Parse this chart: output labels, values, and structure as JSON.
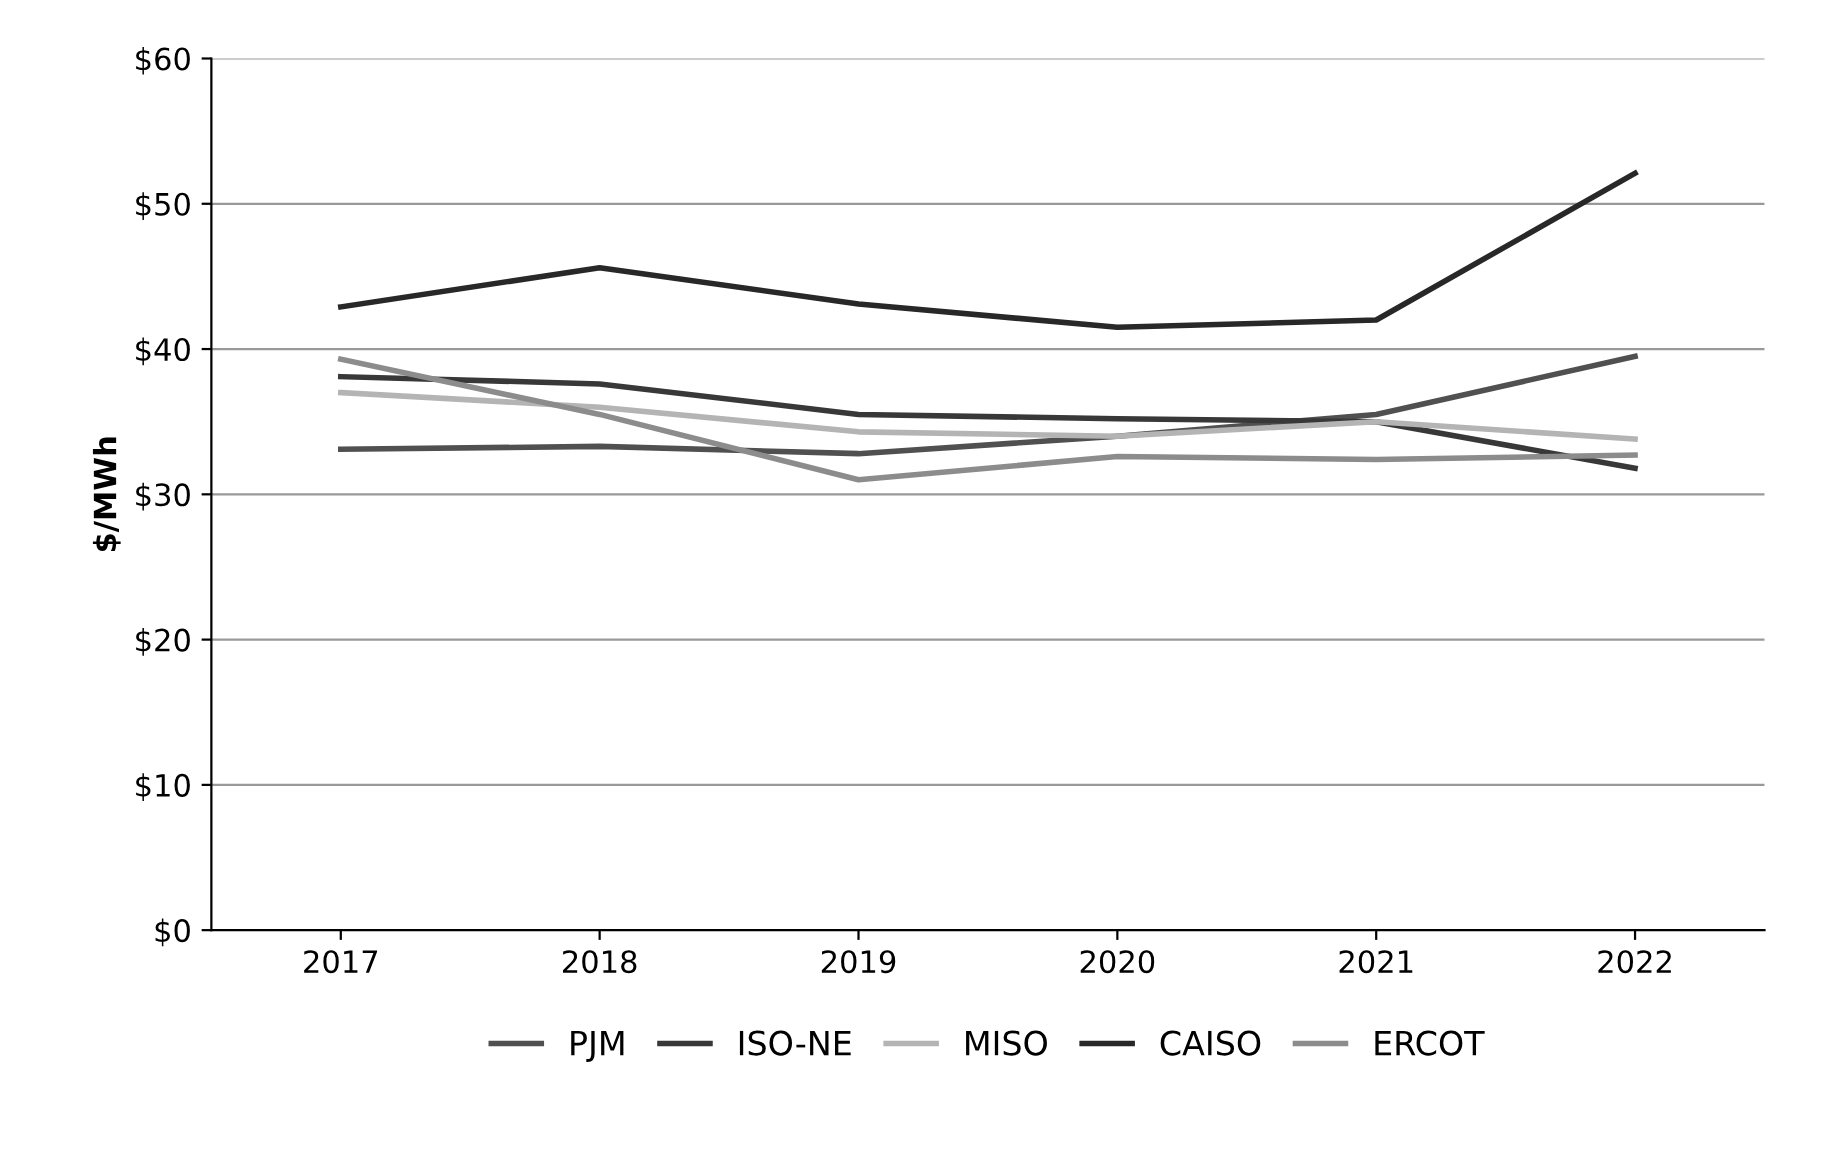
{
  "chart_data": {
    "type": "line",
    "ylabel": "$/MWh",
    "categories": [
      "2017",
      "2018",
      "2019",
      "2020",
      "2021",
      "2022"
    ],
    "series": [
      {
        "name": "PJM",
        "color": "#505050",
        "values": [
          33.1,
          33.3,
          32.8,
          34.0,
          35.5,
          39.5
        ]
      },
      {
        "name": "ISO-NE",
        "color": "#383838",
        "values": [
          38.1,
          37.6,
          35.5,
          35.2,
          35.0,
          31.8
        ]
      },
      {
        "name": "MISO",
        "color": "#b4b4b4",
        "values": [
          37.0,
          36.0,
          34.3,
          34.0,
          35.0,
          33.8
        ]
      },
      {
        "name": "CAISO",
        "color": "#282828",
        "values": [
          42.9,
          45.6,
          43.1,
          41.5,
          42.0,
          52.1
        ]
      },
      {
        "name": "ERCOT",
        "color": "#8c8c8c",
        "values": [
          39.3,
          35.5,
          31.0,
          32.6,
          32.4,
          32.7
        ]
      }
    ],
    "ylim": [
      0,
      60
    ],
    "yticks": [
      {
        "value": 0,
        "label": "$0"
      },
      {
        "value": 10,
        "label": "$10"
      },
      {
        "value": 20,
        "label": "$20"
      },
      {
        "value": 30,
        "label": "$30"
      },
      {
        "value": 40,
        "label": "$40"
      },
      {
        "value": 50,
        "label": "$50"
      },
      {
        "value": 60,
        "label": "$60"
      }
    ],
    "grid": "y",
    "legend": "bottom",
    "marker": "none",
    "line_style": "solid"
  }
}
